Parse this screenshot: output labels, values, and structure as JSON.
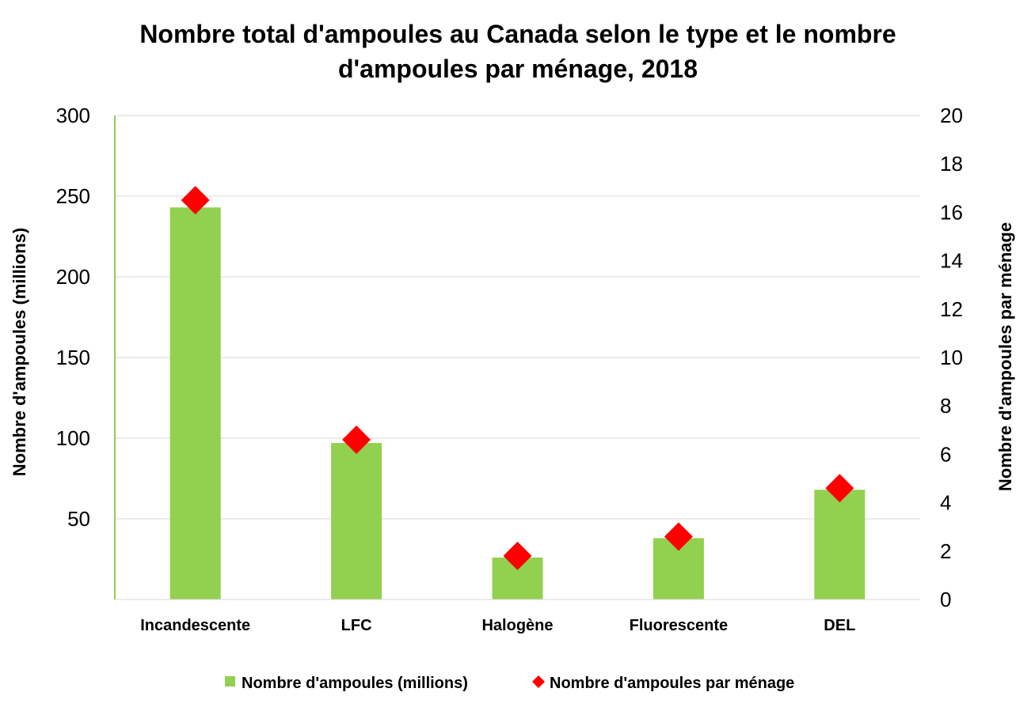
{
  "chart_data": {
    "type": "bar",
    "title_lines": [
      "Nombre total d'ampoules au Canada selon le type et le nombre",
      "d'ampoules par ménage, 2018"
    ],
    "categories": [
      "Incandescente",
      "LFC",
      "Halogène",
      "Fluorescente",
      "DEL"
    ],
    "series": [
      {
        "name": "Nombre d'ampoules (millions)",
        "type": "bar",
        "axis": "left",
        "color": "#92D050",
        "values": [
          243,
          97,
          26,
          38,
          68
        ]
      },
      {
        "name": "Nombre d'ampoules par ménage",
        "type": "scatter",
        "marker": "diamond",
        "axis": "right",
        "color": "#FF0000",
        "values": [
          16.5,
          6.6,
          1.8,
          2.6,
          4.6
        ]
      }
    ],
    "ylabel": "Nombre d'ampoules (millions)",
    "y2label": "Nombre d'ampoules par ménage",
    "ylim": [
      0,
      300
    ],
    "y2lim": [
      0,
      20
    ],
    "yticks": [
      50,
      100,
      150,
      200,
      250,
      300
    ],
    "y2ticks": [
      0,
      2,
      4,
      6,
      8,
      10,
      12,
      14,
      16,
      18,
      20
    ],
    "grid": true,
    "legend": "bottom",
    "axis_color": "#92D050",
    "grid_color": "#D9D9D9"
  }
}
